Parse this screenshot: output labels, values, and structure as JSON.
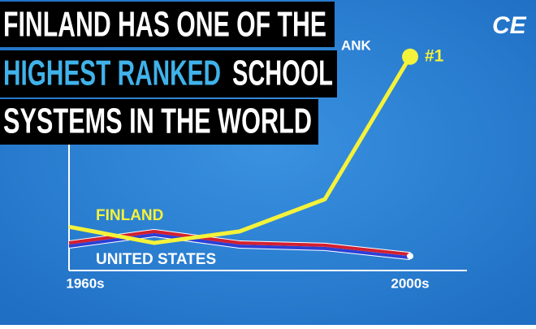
{
  "chart_data": {
    "type": "line",
    "title_parts": [
      "FINLAND HAS ONE OF THE",
      "HIGHEST RANKED",
      "SCHOOL",
      "SYSTEMS IN THE WORLD"
    ],
    "logo": "CE",
    "y_label": "ANK",
    "annotation": "#1",
    "categories": [
      "1960s",
      null,
      null,
      null,
      "2000s"
    ],
    "series": [
      {
        "name": "FINLAND",
        "color": "#f4f23a",
        "values": [
          19,
          12,
          17,
          31,
          93
        ]
      },
      {
        "name": "UNITED STATES",
        "color": "#d3202f",
        "values": [
          12,
          17,
          12,
          11,
          7
        ]
      }
    ],
    "ylim": [
      0,
      100
    ]
  }
}
